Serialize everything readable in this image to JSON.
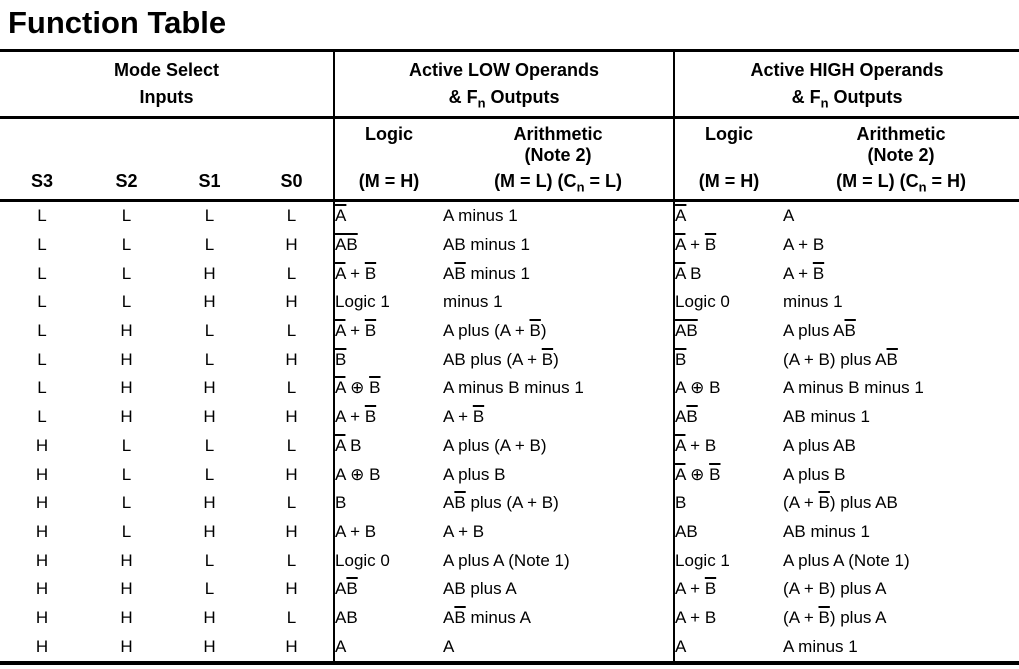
{
  "colors": {
    "background": "#ffffff",
    "text": "#000000",
    "rule": "#000000"
  },
  "page_title": "Function Table",
  "table": {
    "group_headers": {
      "mode_select": {
        "line1": "Mode Select",
        "line2": "Inputs"
      },
      "active_low": {
        "line1": "Active LOW Operands",
        "line2": "& F{n} Outputs"
      },
      "active_high": {
        "line1": "Active HIGH Operands",
        "line2": "& F{n} Outputs"
      }
    },
    "mode_select_columns": [
      "S3",
      "S2",
      "S1",
      "S0"
    ],
    "sub_headers": {
      "low": {
        "logic_label": "Logic",
        "logic_cond": "(M = H)",
        "arith_label": "Arithmetic",
        "arith_note": "(Note 2)",
        "arith_cond": "(M = L) (C{n} = L)"
      },
      "high": {
        "logic_label": "Logic",
        "logic_cond": "(M = H)",
        "arith_label": "Arithmetic",
        "arith_note": "(Note 2)",
        "arith_cond": "(M = L) (C{n} = H)"
      }
    },
    "rows": [
      {
        "s": [
          "L",
          "L",
          "L",
          "L"
        ],
        "low_logic": "[A]",
        "low_arith": "A minus 1",
        "high_logic": "[A]",
        "high_arith": "A"
      },
      {
        "s": [
          "L",
          "L",
          "L",
          "H"
        ],
        "low_logic": "[AB]",
        "low_arith": "AB minus 1",
        "high_logic": "[A] + [B]",
        "high_arith": "A + B"
      },
      {
        "s": [
          "L",
          "L",
          "H",
          "L"
        ],
        "low_logic": "[A] + [B]",
        "low_arith": "A[B] minus 1",
        "high_logic": "[A] B",
        "high_arith": "A + [B]"
      },
      {
        "s": [
          "L",
          "L",
          "H",
          "H"
        ],
        "low_logic": "Logic 1",
        "low_arith": "minus 1",
        "high_logic": "Logic 0",
        "high_arith": "minus 1"
      },
      {
        "s": [
          "L",
          "H",
          "L",
          "L"
        ],
        "low_logic": "[A] + [B]",
        "low_arith": "A plus (A + [B])",
        "high_logic": "[AB]",
        "high_arith": "A plus A[B]"
      },
      {
        "s": [
          "L",
          "H",
          "L",
          "H"
        ],
        "low_logic": "[B]",
        "low_arith": "AB plus (A + [B])",
        "high_logic": "[B]",
        "high_arith": "(A + B) plus A[B]"
      },
      {
        "s": [
          "L",
          "H",
          "H",
          "L"
        ],
        "low_logic": "[A] ⊕ [B]",
        "low_arith": "A minus B minus 1",
        "high_logic": "A ⊕ B",
        "high_arith": "A minus B minus 1"
      },
      {
        "s": [
          "L",
          "H",
          "H",
          "H"
        ],
        "low_logic": "A + [B]",
        "low_arith": "A + [B]",
        "high_logic": "A[B]",
        "high_arith": "AB minus 1"
      },
      {
        "s": [
          "H",
          "L",
          "L",
          "L"
        ],
        "low_logic": "[A] B",
        "low_arith": "A plus (A + B)",
        "high_logic": "[A] + B",
        "high_arith": "A plus AB"
      },
      {
        "s": [
          "H",
          "L",
          "L",
          "H"
        ],
        "low_logic": "A ⊕ B",
        "low_arith": "A plus B",
        "high_logic": "[A] ⊕ [B]",
        "high_arith": "A plus B"
      },
      {
        "s": [
          "H",
          "L",
          "H",
          "L"
        ],
        "low_logic": "B",
        "low_arith": "A[B] plus (A + B)",
        "high_logic": "B",
        "high_arith": "(A + [B]) plus AB"
      },
      {
        "s": [
          "H",
          "L",
          "H",
          "H"
        ],
        "low_logic": "A + B",
        "low_arith": "A + B",
        "high_logic": "AB",
        "high_arith": "AB minus 1"
      },
      {
        "s": [
          "H",
          "H",
          "L",
          "L"
        ],
        "low_logic": "Logic 0",
        "low_arith": "A plus A (Note 1)",
        "high_logic": "Logic 1",
        "high_arith": "A plus A (Note 1)"
      },
      {
        "s": [
          "H",
          "H",
          "L",
          "H"
        ],
        "low_logic": "A[B]",
        "low_arith": "AB plus A",
        "high_logic": "A + [B]",
        "high_arith": "(A + B) plus A"
      },
      {
        "s": [
          "H",
          "H",
          "H",
          "L"
        ],
        "low_logic": "AB",
        "low_arith": "A[B] minus A",
        "high_logic": "A + B",
        "high_arith": "(A + [B]) plus A"
      },
      {
        "s": [
          "H",
          "H",
          "H",
          "H"
        ],
        "low_logic": "A",
        "low_arith": "A",
        "high_logic": "A",
        "high_arith": "A minus 1"
      }
    ]
  }
}
